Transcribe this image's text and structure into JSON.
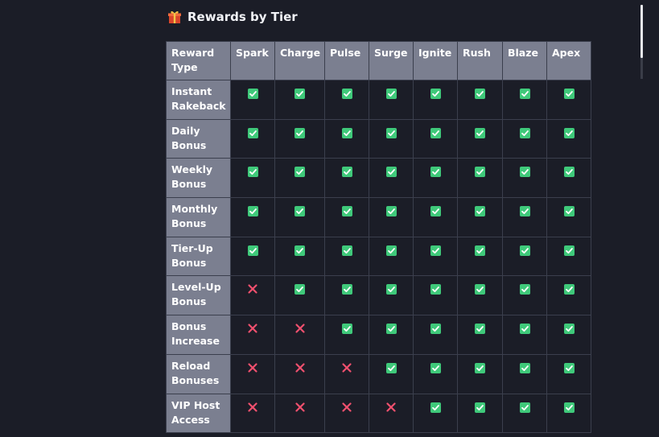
{
  "section": {
    "icon": "gift-icon",
    "title": "Rewards by Tier"
  },
  "table": {
    "corner_label": "Reward Type",
    "columns": [
      "Spark",
      "Charge",
      "Pulse",
      "Surge",
      "Ignite",
      "Rush",
      "Blaze",
      "Apex"
    ],
    "rows": [
      {
        "label": "Instant Rakeback",
        "values": [
          true,
          true,
          true,
          true,
          true,
          true,
          true,
          true
        ]
      },
      {
        "label": "Daily Bonus",
        "values": [
          true,
          true,
          true,
          true,
          true,
          true,
          true,
          true
        ]
      },
      {
        "label": "Weekly Bonus",
        "values": [
          true,
          true,
          true,
          true,
          true,
          true,
          true,
          true
        ]
      },
      {
        "label": "Monthly Bonus",
        "values": [
          true,
          true,
          true,
          true,
          true,
          true,
          true,
          true
        ]
      },
      {
        "label": "Tier-Up Bonus",
        "values": [
          true,
          true,
          true,
          true,
          true,
          true,
          true,
          true
        ]
      },
      {
        "label": "Level-Up Bonus",
        "values": [
          false,
          true,
          true,
          true,
          true,
          true,
          true,
          true
        ]
      },
      {
        "label": "Bonus Increase",
        "values": [
          false,
          false,
          true,
          true,
          true,
          true,
          true,
          true
        ]
      },
      {
        "label": "Reload Bonuses",
        "values": [
          false,
          false,
          false,
          true,
          true,
          true,
          true,
          true
        ]
      },
      {
        "label": "VIP Host Access",
        "values": [
          false,
          false,
          false,
          false,
          true,
          true,
          true,
          true
        ]
      }
    ]
  },
  "colors": {
    "check": "#3fc97a",
    "cross": "#f0506e",
    "header_bg": "#7b7f90",
    "page_bg": "#1b1d27"
  }
}
